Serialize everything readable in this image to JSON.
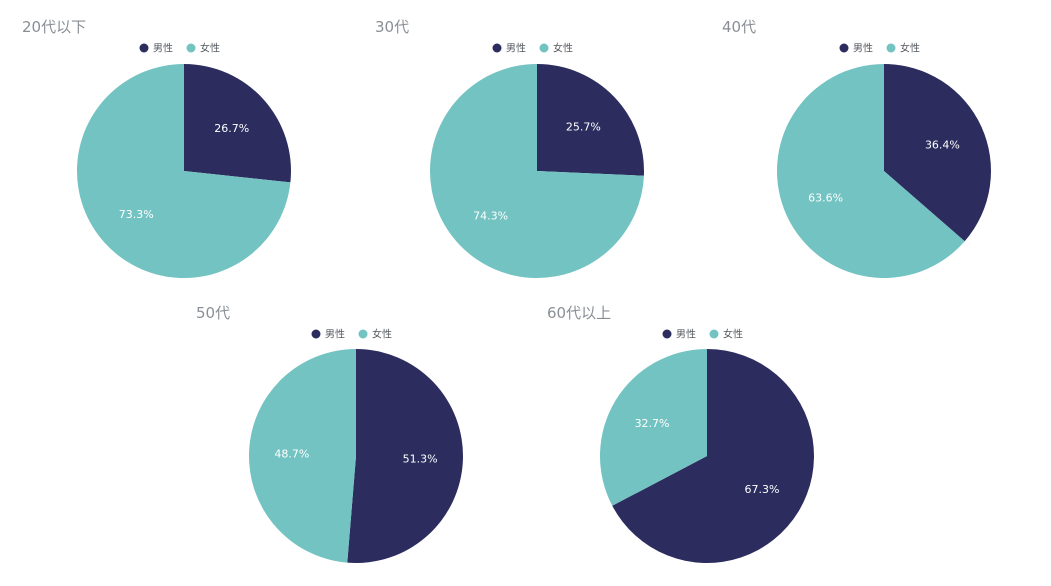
{
  "colors": {
    "male": "#2c2d5e",
    "female": "#72c3c2"
  },
  "chart_data": [
    {
      "type": "pie",
      "title": "20代以下",
      "legend": [
        "男性",
        "女性"
      ],
      "legend_position": "top",
      "slices": [
        {
          "name": "男性",
          "value": 26.7,
          "label": "26.7%"
        },
        {
          "name": "女性",
          "value": 73.3,
          "label": "73.3%"
        }
      ]
    },
    {
      "type": "pie",
      "title": "30代",
      "legend": [
        "男性",
        "女性"
      ],
      "legend_position": "top",
      "slices": [
        {
          "name": "男性",
          "value": 25.7,
          "label": "25.7%"
        },
        {
          "name": "女性",
          "value": 74.3,
          "label": "74.3%"
        }
      ]
    },
    {
      "type": "pie",
      "title": "40代",
      "legend": [
        "男性",
        "女性"
      ],
      "legend_position": "top",
      "slices": [
        {
          "name": "男性",
          "value": 36.4,
          "label": "36.4%"
        },
        {
          "name": "女性",
          "value": 63.6,
          "label": "63.6%"
        }
      ]
    },
    {
      "type": "pie",
      "title": "50代",
      "legend": [
        "男性",
        "女性"
      ],
      "legend_position": "top",
      "slices": [
        {
          "name": "男性",
          "value": 51.3,
          "label": "51.3%"
        },
        {
          "name": "女性",
          "value": 48.7,
          "label": "48.7%"
        }
      ]
    },
    {
      "type": "pie",
      "title": "60代以上",
      "legend": [
        "男性",
        "女性"
      ],
      "legend_position": "top",
      "slices": [
        {
          "name": "男性",
          "value": 67.3,
          "label": "67.3%"
        },
        {
          "name": "女性",
          "value": 32.7,
          "label": "32.7%"
        }
      ]
    }
  ]
}
